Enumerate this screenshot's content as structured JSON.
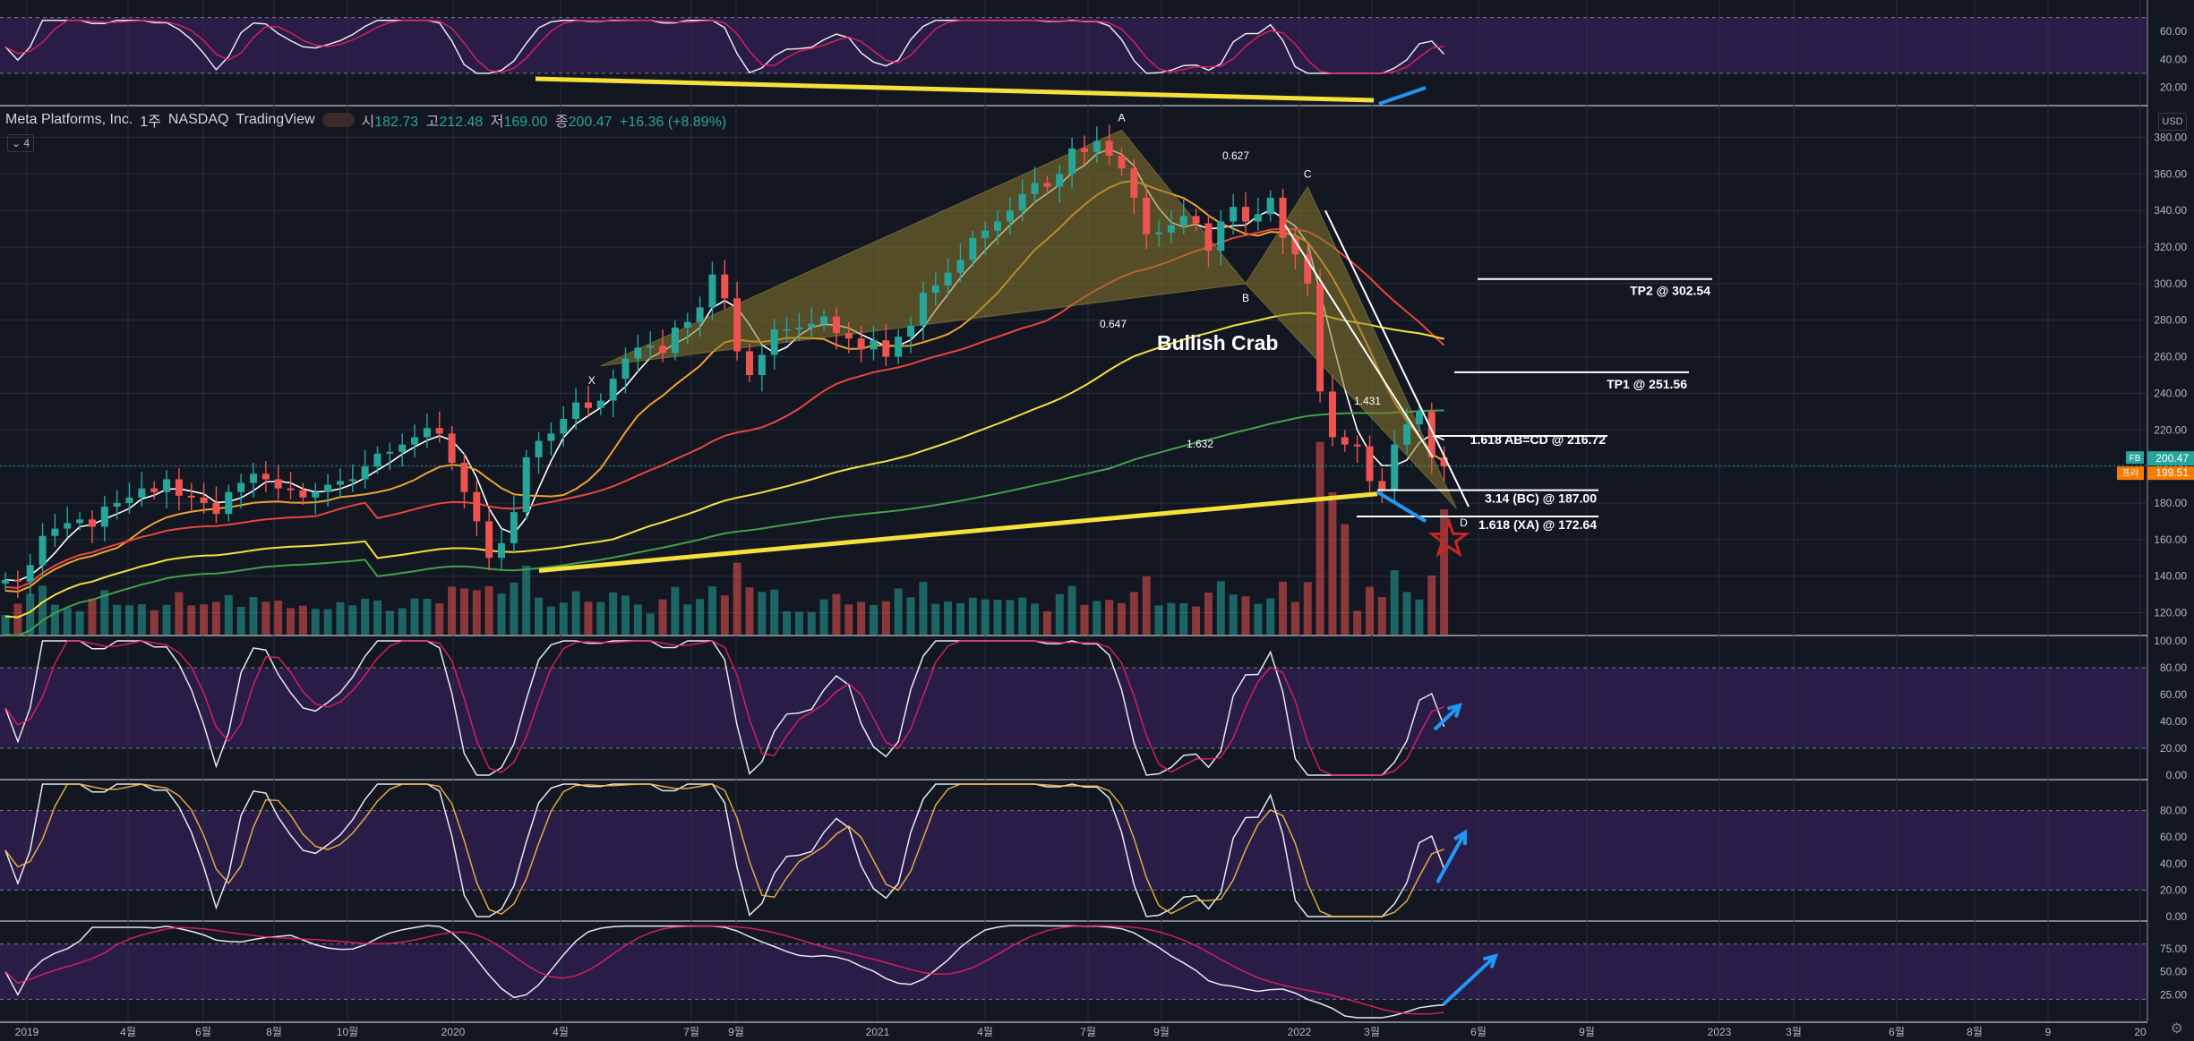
{
  "header": {
    "company": "Meta Platforms, Inc.",
    "interval": "1주",
    "exchange": "NASDAQ",
    "platform": "TradingView",
    "open_label": "시",
    "open": "182.73",
    "high_label": "고",
    "high": "212.48",
    "low_label": "저",
    "low": "169.00",
    "close_label": "종",
    "close": "200.47",
    "change": "+16.36 (+8.89%)",
    "collapse_label": "4",
    "currency": "USD"
  },
  "colors": {
    "background": "#131722",
    "up": "#26a69a",
    "down": "#ef5350",
    "indicator_band": "#2e1f4d",
    "pattern_fill": "#8a7a2e",
    "trendline": "#f5e13a",
    "arrow": "#2196f3"
  },
  "chart_data": {
    "type": "candlestick",
    "symbol": "FB",
    "x_ticks": [
      "2019",
      "4월",
      "6월",
      "8월",
      "10월",
      "2020",
      "4월",
      "7월",
      "9월",
      "2021",
      "4월",
      "7월",
      "9월",
      "2022",
      "3월",
      "6월",
      "9월",
      "2023",
      "3월",
      "6월",
      "8월",
      "9",
      "20"
    ],
    "price_axis": {
      "ticks": [
        "380.00",
        "360.00",
        "340.00",
        "320.00",
        "300.00",
        "280.00",
        "260.00",
        "240.00",
        "220.00",
        "200.00",
        "180.00",
        "160.00",
        "140.00",
        "120.00"
      ],
      "range": [
        108,
        392
      ],
      "last_price_label": "200.47",
      "last_price_symbol": "FB",
      "countdown_label": "199.51",
      "countdown_prefix": "프리"
    },
    "close_series": [
      138,
      137,
      146,
      162,
      166,
      169,
      171,
      167,
      178,
      180,
      183,
      188,
      186,
      193,
      184,
      183,
      180,
      174,
      186,
      191,
      196,
      193,
      188,
      187,
      183,
      186,
      190,
      192,
      193,
      200,
      207,
      208,
      212,
      216,
      221,
      218,
      202,
      186,
      170,
      150,
      158,
      175,
      205,
      214,
      218,
      226,
      235,
      232,
      236,
      248,
      259,
      265,
      266,
      262,
      276,
      279,
      287,
      305,
      292,
      263,
      250,
      261,
      275,
      275,
      276,
      278,
      282,
      273,
      270,
      264,
      269,
      260,
      271,
      277,
      295,
      299,
      306,
      313,
      325,
      329,
      334,
      340,
      349,
      355,
      353,
      360,
      374,
      372,
      378,
      370,
      363,
      347,
      327,
      328,
      332,
      337,
      333,
      318,
      334,
      342,
      334,
      338,
      347,
      325,
      316,
      300,
      241,
      216,
      212,
      211,
      192,
      187,
      212,
      223,
      230,
      205,
      200
    ],
    "overlays": [
      {
        "name": "MA short",
        "color": "#ffffff"
      },
      {
        "name": "MA 20",
        "color": "#f0a22e"
      },
      {
        "name": "MA 50",
        "color": "#e8463d"
      },
      {
        "name": "MA 100",
        "color": "#f5e13a"
      },
      {
        "name": "MA 200",
        "color": "#43a047"
      }
    ],
    "harmonic_pattern": {
      "name": "Bullish Crab",
      "points": [
        {
          "label": "X",
          "price": 255
        },
        {
          "label": "A",
          "price": 384
        },
        {
          "label": "B",
          "price": 300
        },
        {
          "label": "C",
          "price": 353
        },
        {
          "label": "D",
          "price": 177
        }
      ],
      "ratios": [
        "0.627",
        "0.647",
        "1.632",
        "1.431"
      ]
    },
    "levels": [
      {
        "label": "TP2 @ 302.54",
        "value": 302.54
      },
      {
        "label": "TP1 @ 251.56",
        "value": 251.56
      },
      {
        "label": "1.618 AB=CD @ 216.72",
        "value": 216.72
      },
      {
        "label": "3.14 (BC) @ 187.00",
        "value": 187.0
      },
      {
        "label": "1.618 (XA) @ 172.64",
        "value": 172.64
      }
    ],
    "indicators": [
      {
        "ticks": [
          "60.00",
          "40.00",
          "20.00"
        ],
        "levels": [
          70,
          30
        ],
        "range": [
          10,
          80
        ]
      },
      {
        "ticks": [
          "100.00",
          "80.00",
          "60.00",
          "40.00",
          "20.00",
          "0.00"
        ],
        "levels": [
          80,
          20
        ],
        "range": [
          0,
          100
        ]
      },
      {
        "ticks": [
          "80.00",
          "60.00",
          "40.00",
          "20.00",
          "0.00"
        ],
        "levels": [
          80,
          20
        ],
        "range": [
          0,
          100
        ]
      },
      {
        "ticks": [
          "75.00",
          "50.00",
          "25.00"
        ],
        "levels": [
          80,
          20
        ],
        "range": [
          0,
          100
        ]
      }
    ]
  }
}
